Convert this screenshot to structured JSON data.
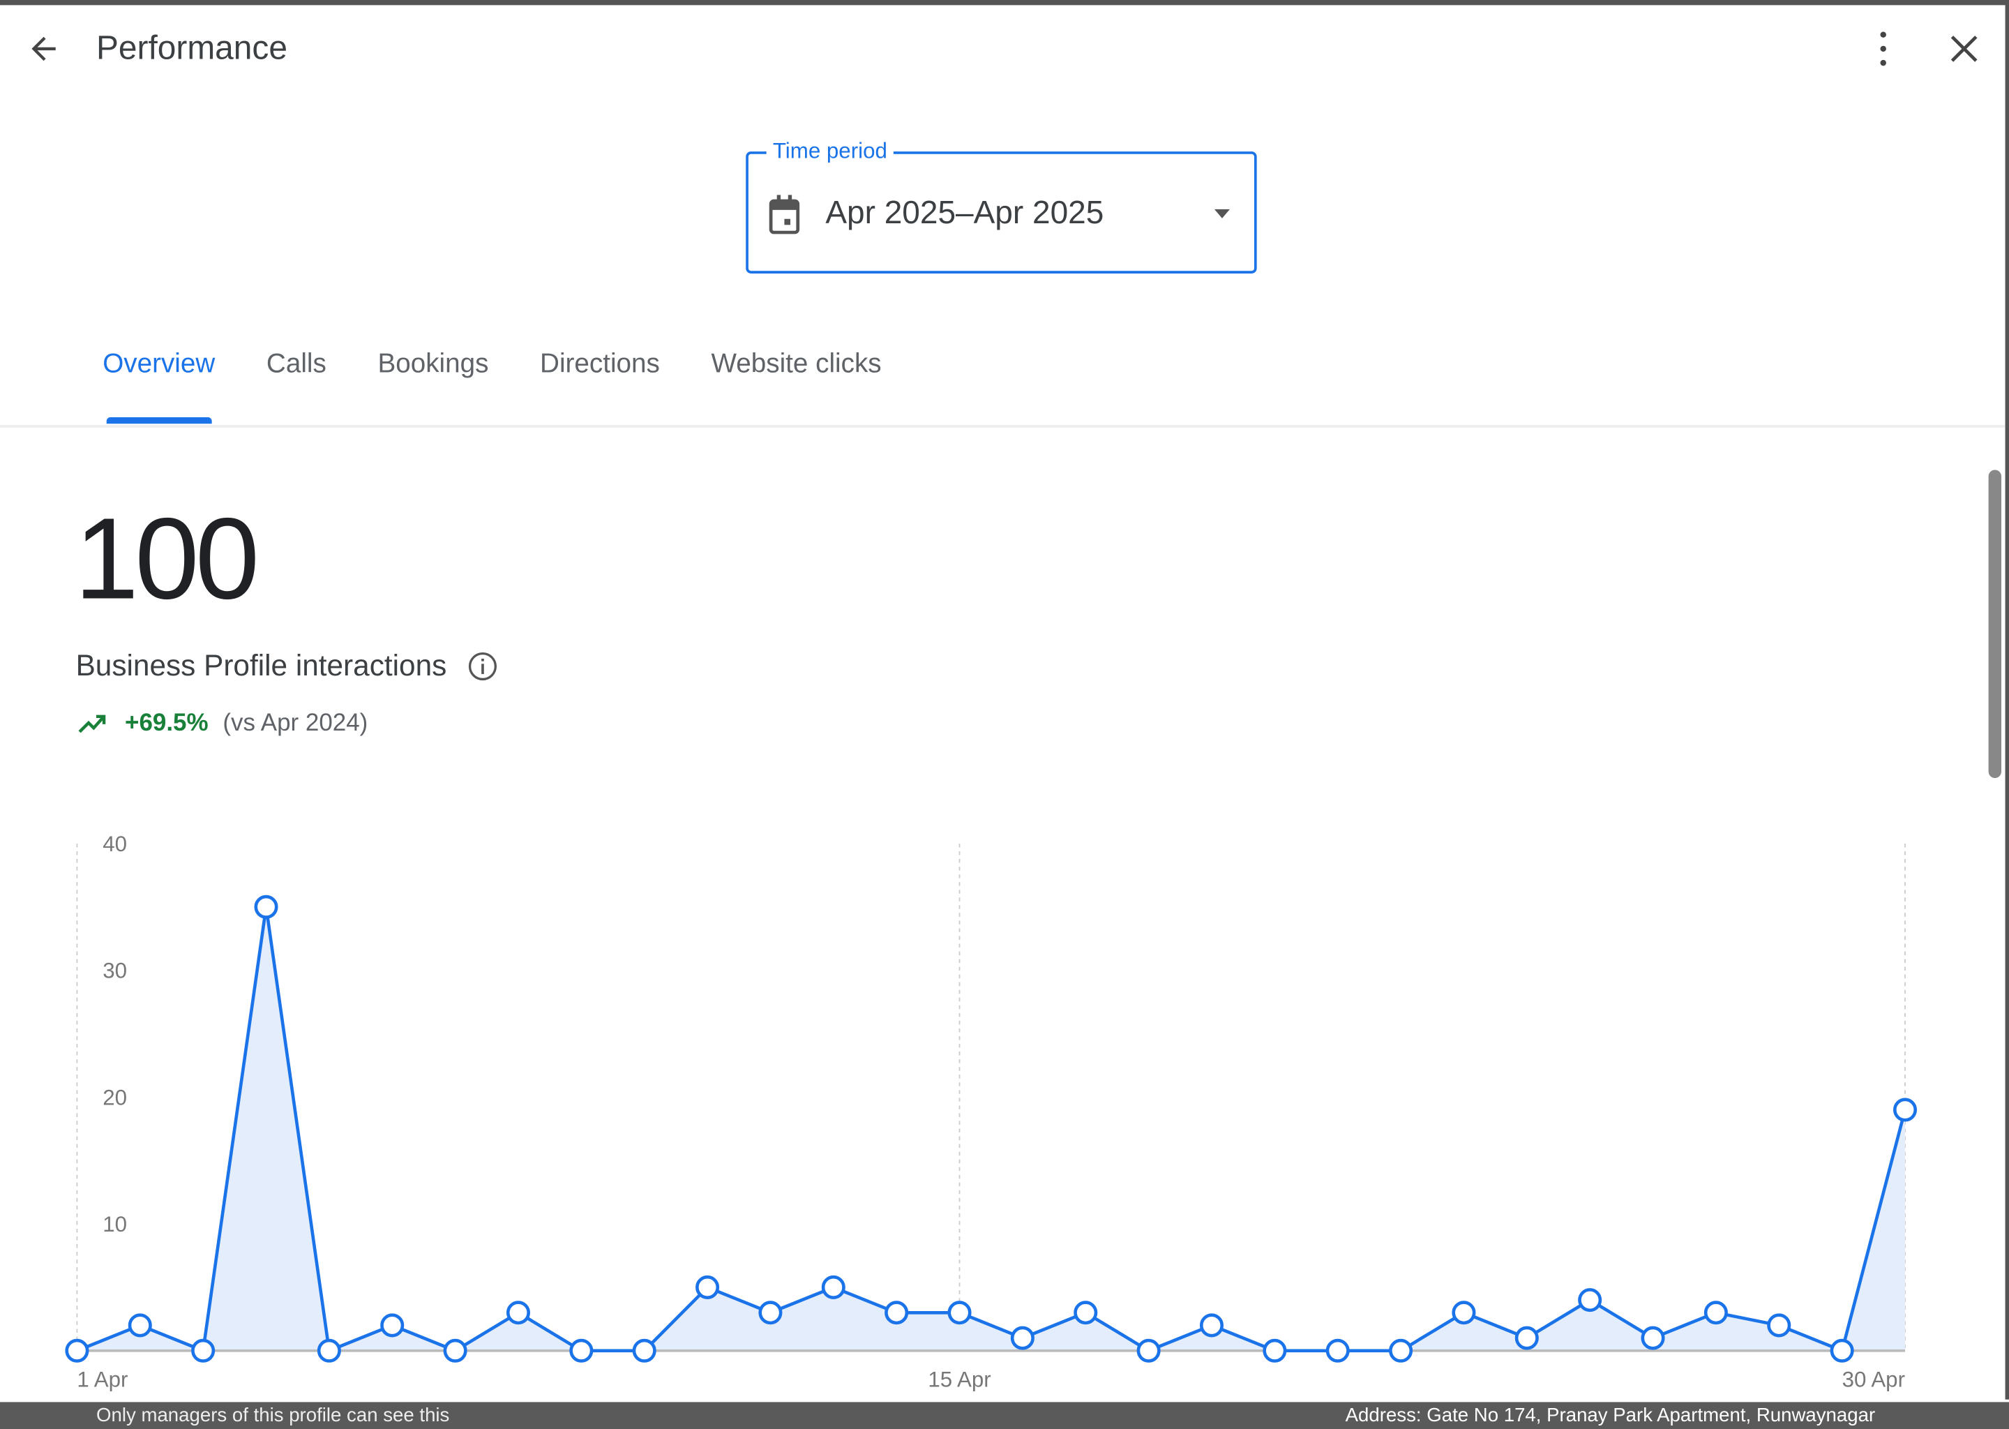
{
  "header": {
    "title": "Performance",
    "back_icon": "arrow-left-icon",
    "more_icon": "more-vert-icon",
    "close_icon": "close-icon"
  },
  "time_period": {
    "label": "Time period",
    "value": "Apr 2025–Apr 2025",
    "icon": "calendar-icon"
  },
  "tabs": [
    {
      "label": "Overview",
      "active": true
    },
    {
      "label": "Calls"
    },
    {
      "label": "Bookings"
    },
    {
      "label": "Directions"
    },
    {
      "label": "Website clicks"
    }
  ],
  "summary": {
    "total": "100",
    "label": "Business Profile interactions",
    "change": "+69.5%",
    "comparison": "(vs Apr 2024)",
    "change_color": "#188038"
  },
  "chart_data": {
    "type": "area",
    "x": [
      1,
      2,
      3,
      4,
      5,
      6,
      7,
      8,
      9,
      10,
      11,
      12,
      13,
      14,
      15,
      16,
      17,
      18,
      19,
      20,
      21,
      22,
      23,
      24,
      25,
      26,
      27,
      28,
      29,
      30
    ],
    "values": [
      0,
      2,
      0,
      35,
      0,
      2,
      0,
      3,
      0,
      0,
      5,
      3,
      5,
      3,
      3,
      1,
      3,
      0,
      2,
      0,
      0,
      0,
      3,
      1,
      4,
      1,
      3,
      2,
      0,
      19
    ],
    "yticks": [
      "10",
      "20",
      "30",
      "40"
    ],
    "xticks": [
      {
        "day": 1,
        "label": "1 Apr"
      },
      {
        "day": 15,
        "label": "15 Apr"
      },
      {
        "day": 30,
        "label": "30 Apr"
      }
    ],
    "ylim": [
      0,
      40
    ],
    "line_color": "#1a73e8",
    "fill_color": "#e3edfc"
  },
  "footer": {
    "note": "Only managers of this profile can see this",
    "address": "Address: Gate No 174, Pranay Park Apartment, Runwaynagar"
  }
}
